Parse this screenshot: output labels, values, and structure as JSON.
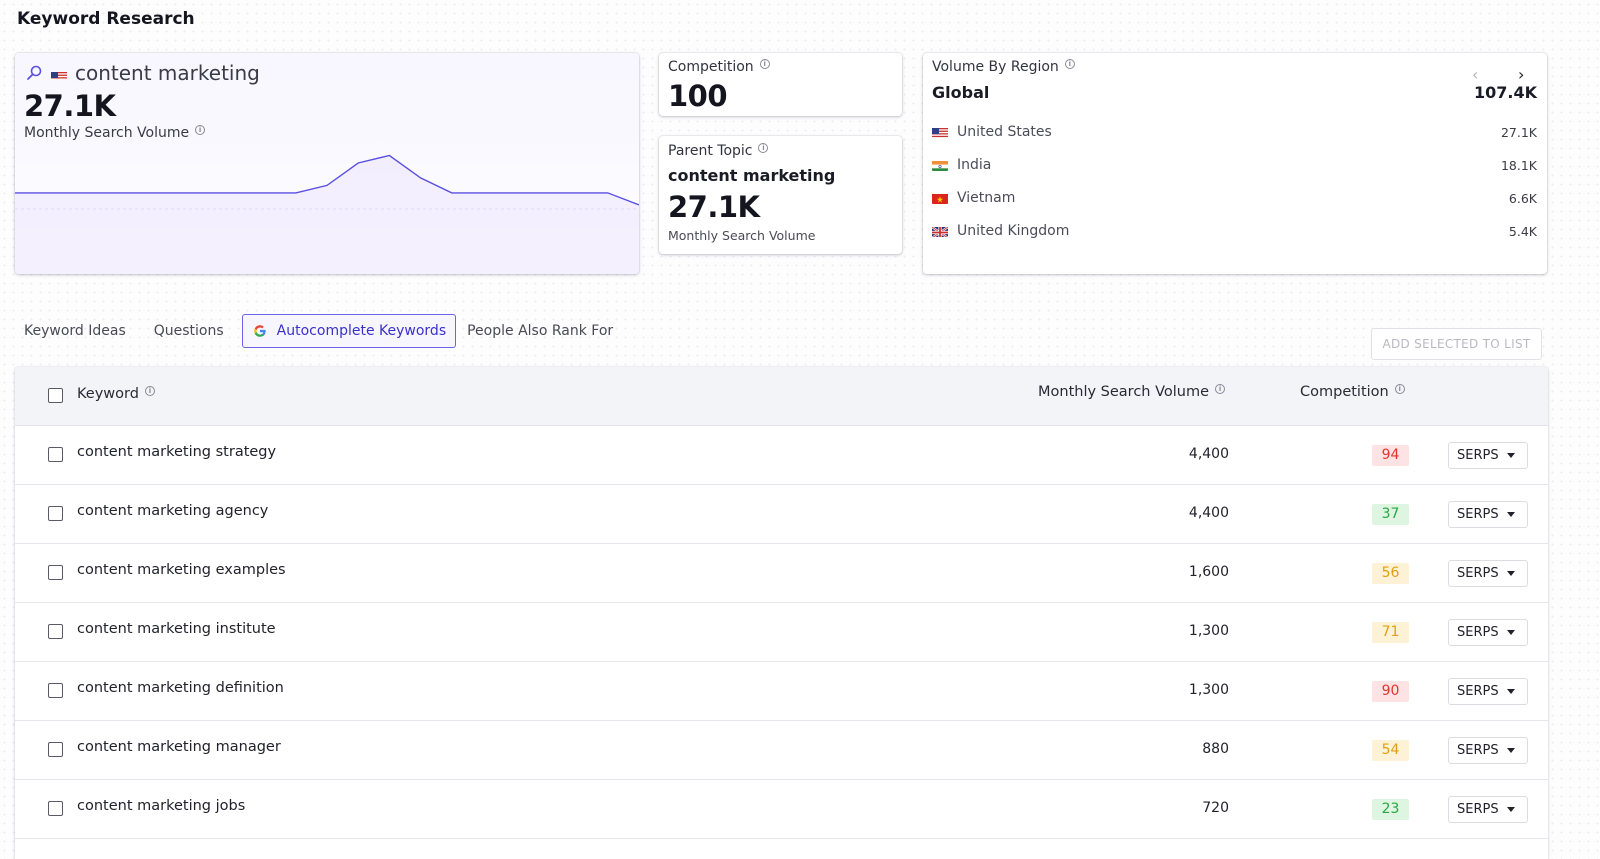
{
  "page": {
    "title": "Keyword Research"
  },
  "keyword_card": {
    "keyword": "content marketing",
    "volume": "27.1K",
    "volume_label": "Monthly Search Volume",
    "trend": [
      4,
      4,
      4,
      4,
      4,
      4,
      4,
      4,
      4,
      4,
      4.5,
      6,
      6.5,
      5,
      4,
      4,
      4,
      4,
      4,
      4,
      3.2
    ],
    "colors": {
      "line": "#5a4fe0",
      "fill": "#efeafe"
    }
  },
  "competition_card": {
    "title": "Competition",
    "value": "100"
  },
  "parent_topic_card": {
    "title": "Parent Topic",
    "topic": "content marketing",
    "volume": "27.1K",
    "volume_label": "Monthly Search Volume"
  },
  "region_card": {
    "title": "Volume By Region",
    "region": "Global",
    "total": "107.4K",
    "rows": [
      {
        "country": "United States",
        "value": "27.1K",
        "flag": "us-flag"
      },
      {
        "country": "India",
        "value": "18.1K",
        "flag": "in-flag"
      },
      {
        "country": "Vietnam",
        "value": "6.6K",
        "flag": "vn-flag"
      },
      {
        "country": "United Kingdom",
        "value": "5.4K",
        "flag": "gb-flag"
      }
    ]
  },
  "tabs": [
    {
      "label": "Keyword Ideas",
      "active": false
    },
    {
      "label": "Questions",
      "active": false
    },
    {
      "label": "Autocomplete Keywords",
      "active": true
    },
    {
      "label": "People Also Rank For",
      "active": false
    }
  ],
  "add_button": "ADD SELECTED TO LIST",
  "table": {
    "headers": {
      "keyword": "Keyword",
      "volume": "Monthly Search Volume",
      "competition": "Competition"
    },
    "serps_label": "SERPS",
    "rows": [
      {
        "keyword": "content marketing strategy",
        "volume": "4,400",
        "competition": "94",
        "level": "high"
      },
      {
        "keyword": "content marketing agency",
        "volume": "4,400",
        "competition": "37",
        "level": "low"
      },
      {
        "keyword": "content marketing examples",
        "volume": "1,600",
        "competition": "56",
        "level": "medium"
      },
      {
        "keyword": "content marketing institute",
        "volume": "1,300",
        "competition": "71",
        "level": "medium"
      },
      {
        "keyword": "content marketing definition",
        "volume": "1,300",
        "competition": "90",
        "level": "high"
      },
      {
        "keyword": "content marketing manager",
        "volume": "880",
        "competition": "54",
        "level": "medium"
      },
      {
        "keyword": "content marketing jobs",
        "volume": "720",
        "competition": "23",
        "level": "low"
      }
    ]
  },
  "colors": {
    "accent": "#5a4fe0",
    "high_bg": "#fde3e3",
    "high_fg": "#e0342e",
    "medium_bg": "#fdf1d6",
    "medium_fg": "#e0a012",
    "low_bg": "#def5e2",
    "low_fg": "#2aa744"
  }
}
